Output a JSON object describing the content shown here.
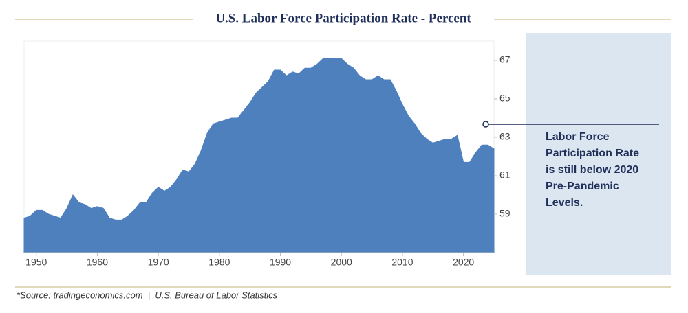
{
  "chart_data": {
    "type": "area",
    "title": "U.S. Labor Force Participation Rate - Percent",
    "x": [
      1948,
      1949,
      1950,
      1951,
      1952,
      1953,
      1954,
      1955,
      1956,
      1957,
      1958,
      1959,
      1960,
      1961,
      1962,
      1963,
      1964,
      1965,
      1966,
      1967,
      1968,
      1969,
      1970,
      1971,
      1972,
      1973,
      1974,
      1975,
      1976,
      1977,
      1978,
      1979,
      1980,
      1981,
      1982,
      1983,
      1984,
      1985,
      1986,
      1987,
      1988,
      1989,
      1990,
      1991,
      1992,
      1993,
      1994,
      1995,
      1996,
      1997,
      1998,
      1999,
      2000,
      2001,
      2002,
      2003,
      2004,
      2005,
      2006,
      2007,
      2008,
      2009,
      2010,
      2011,
      2012,
      2013,
      2014,
      2015,
      2016,
      2017,
      2018,
      2019,
      2020,
      2021,
      2022,
      2023,
      2024,
      2025
    ],
    "values": [
      58.8,
      58.9,
      59.2,
      59.2,
      59.0,
      58.9,
      58.8,
      59.3,
      60.0,
      59.6,
      59.5,
      59.3,
      59.4,
      59.3,
      58.8,
      58.7,
      58.7,
      58.9,
      59.2,
      59.6,
      59.6,
      60.1,
      60.4,
      60.2,
      60.4,
      60.8,
      61.3,
      61.2,
      61.6,
      62.3,
      63.2,
      63.7,
      63.8,
      63.9,
      64.0,
      64.0,
      64.4,
      64.8,
      65.3,
      65.6,
      65.9,
      66.5,
      66.5,
      66.2,
      66.4,
      66.3,
      66.6,
      66.6,
      66.8,
      67.1,
      67.1,
      67.1,
      67.1,
      66.8,
      66.6,
      66.2,
      66.0,
      66.0,
      66.2,
      66.0,
      66.0,
      65.4,
      64.7,
      64.1,
      63.7,
      63.2,
      62.9,
      62.7,
      62.8,
      62.9,
      62.9,
      63.1,
      61.7,
      61.7,
      62.2,
      62.6,
      62.6,
      62.4
    ],
    "color": "#4e80be",
    "xlim": [
      1948,
      2025
    ],
    "xticks": [
      1950,
      1960,
      1970,
      1980,
      1990,
      2000,
      2010,
      2020
    ],
    "ylim": [
      57,
      68
    ],
    "yticks": [
      59,
      61,
      63,
      65,
      67
    ],
    "annotation": [
      "Labor Force",
      "Participation Rate",
      "is still below 2020",
      "Pre-Pandemic",
      "Levels."
    ],
    "source": "*Source: tradingeconomics.com  |  U.S. Bureau of Labor Statistics"
  }
}
